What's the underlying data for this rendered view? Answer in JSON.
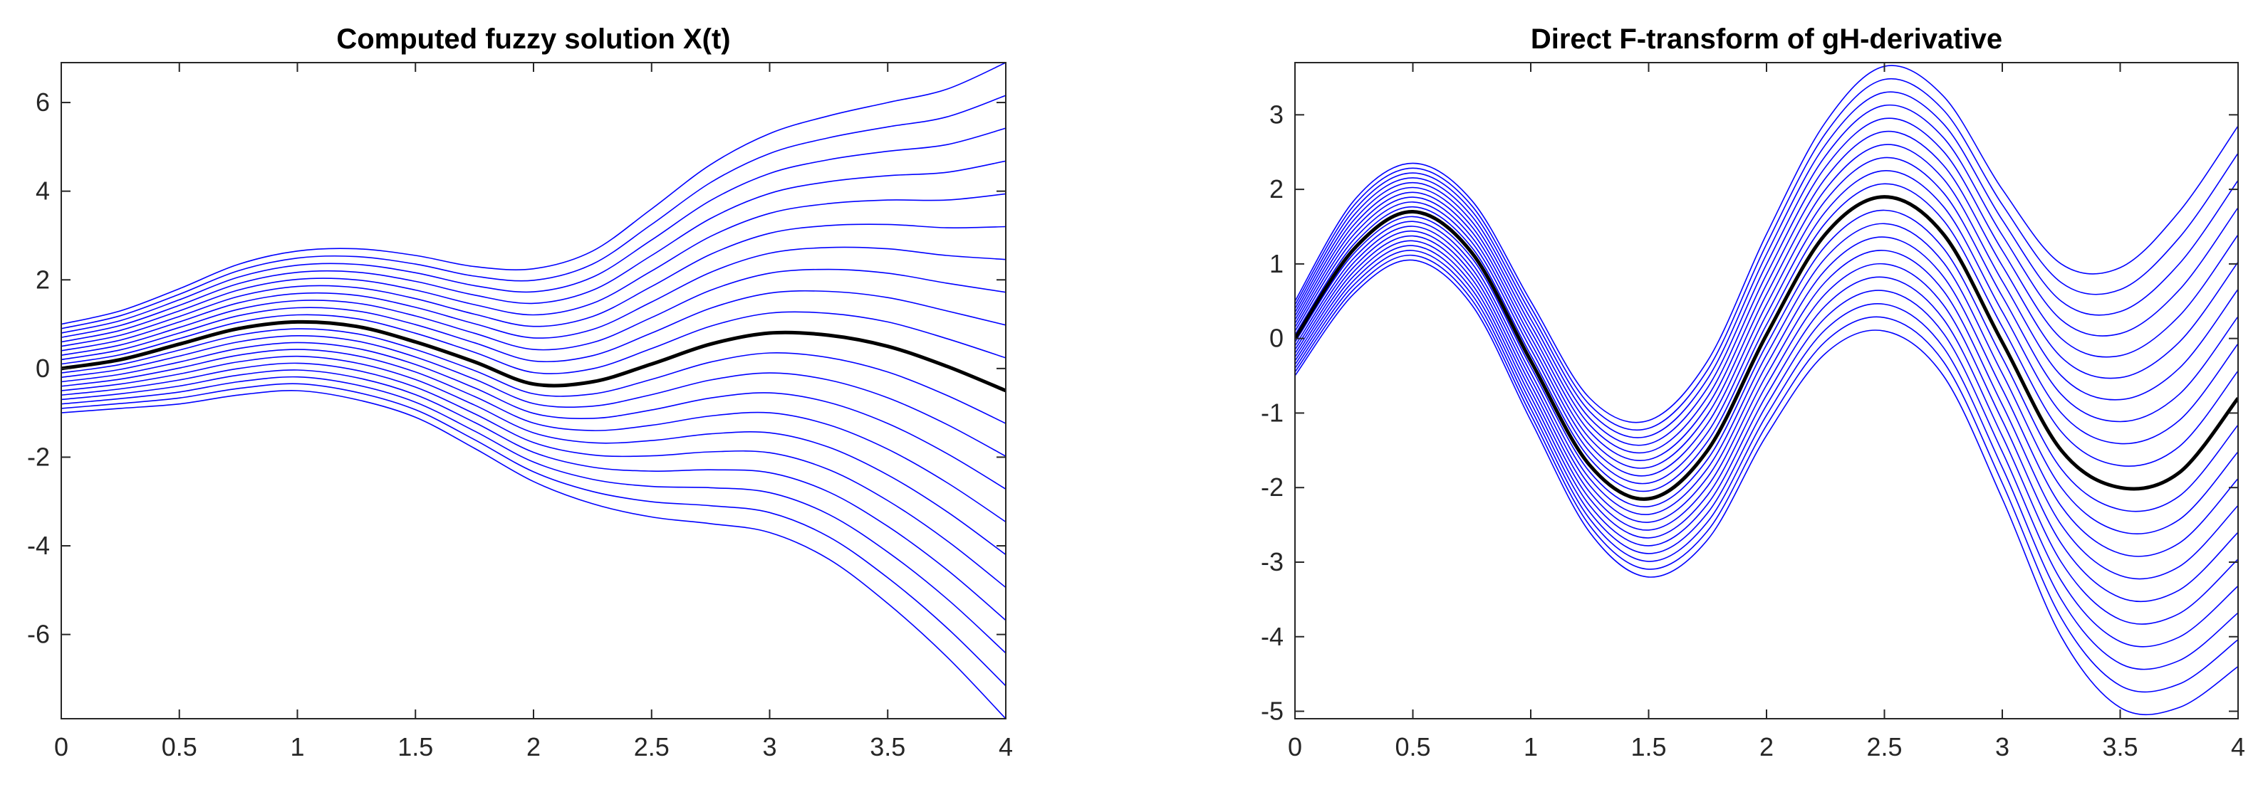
{
  "chart_data": [
    {
      "type": "line",
      "title": "Computed fuzzy solution X(t)",
      "xlabel": "",
      "ylabel": "",
      "xlim": [
        0,
        4
      ],
      "ylim": [
        -7.9,
        6.9
      ],
      "xticks": [
        0,
        0.5,
        1,
        1.5,
        2,
        2.5,
        3,
        3.5,
        4
      ],
      "xtick_labels": [
        "0",
        "0.5",
        "1",
        "1.5",
        "2",
        "2.5",
        "3",
        "3.5",
        "4"
      ],
      "yticks": [
        -6,
        -4,
        -2,
        0,
        2,
        4,
        6
      ],
      "ytick_labels": [
        "-6",
        "-4",
        "-2",
        "0",
        "2",
        "4",
        "6"
      ],
      "grid": false,
      "legend": "none",
      "x": [
        0,
        0.25,
        0.5,
        0.75,
        1,
        1.25,
        1.5,
        1.75,
        2,
        2.25,
        2.5,
        2.75,
        3,
        3.25,
        3.5,
        3.75,
        4
      ],
      "center": [
        0,
        0.2,
        0.55,
        0.9,
        1.05,
        0.95,
        0.6,
        0.15,
        -0.35,
        -0.3,
        0.1,
        0.55,
        0.8,
        0.75,
        0.5,
        0.05,
        -0.5
      ],
      "upper_envelope": [
        1.0,
        1.3,
        1.8,
        2.35,
        2.65,
        2.7,
        2.55,
        2.3,
        2.25,
        2.65,
        3.6,
        4.6,
        5.3,
        5.7,
        6.0,
        6.3,
        6.9
      ],
      "lower_envelope": [
        -1.0,
        -0.9,
        -0.8,
        -0.6,
        -0.5,
        -0.7,
        -1.1,
        -1.8,
        -2.55,
        -3.05,
        -3.35,
        -3.5,
        -3.7,
        -4.3,
        -5.3,
        -6.5,
        -7.9
      ],
      "num_alpha_levels": 11,
      "series_colors": {
        "alpha_cuts": "#0000ff",
        "center": "#000000"
      }
    },
    {
      "type": "line",
      "title": "Direct F-transform of gH-derivative",
      "xlabel": "",
      "ylabel": "",
      "xlim": [
        0,
        4
      ],
      "ylim": [
        -5.1,
        3.7
      ],
      "xticks": [
        0,
        0.5,
        1,
        1.5,
        2,
        2.5,
        3,
        3.5,
        4
      ],
      "xtick_labels": [
        "0",
        "0.5",
        "1",
        "1.5",
        "2",
        "2.5",
        "3",
        "3.5",
        "4"
      ],
      "yticks": [
        -5,
        -4,
        -3,
        -2,
        -1,
        0,
        1,
        2,
        3
      ],
      "ytick_labels": [
        "-5",
        "-4",
        "-3",
        "-2",
        "-1",
        "0",
        "1",
        "2",
        "3"
      ],
      "grid": false,
      "legend": "none",
      "x": [
        0,
        0.25,
        0.5,
        0.75,
        1,
        1.25,
        1.5,
        1.75,
        2,
        2.25,
        2.5,
        2.75,
        3,
        3.25,
        3.5,
        3.75,
        4
      ],
      "center": [
        0,
        1.2,
        1.7,
        1.15,
        -0.3,
        -1.7,
        -2.15,
        -1.5,
        0.05,
        1.4,
        1.9,
        1.4,
        -0.05,
        -1.5,
        -2.0,
        -1.8,
        -0.8
      ],
      "upper_envelope": [
        0.5,
        1.85,
        2.35,
        1.85,
        0.5,
        -0.8,
        -1.1,
        -0.3,
        1.4,
        2.9,
        3.65,
        3.25,
        2.0,
        1.0,
        0.95,
        1.7,
        2.85
      ],
      "lower_envelope": [
        -0.5,
        0.6,
        1.05,
        0.45,
        -1.1,
        -2.6,
        -3.2,
        -2.7,
        -1.3,
        -0.2,
        0.1,
        -0.5,
        -2.15,
        -4.0,
        -4.95,
        -4.95,
        -4.4
      ],
      "num_alpha_levels": 11,
      "series_colors": {
        "alpha_cuts": "#0000ff",
        "center": "#000000"
      }
    }
  ]
}
